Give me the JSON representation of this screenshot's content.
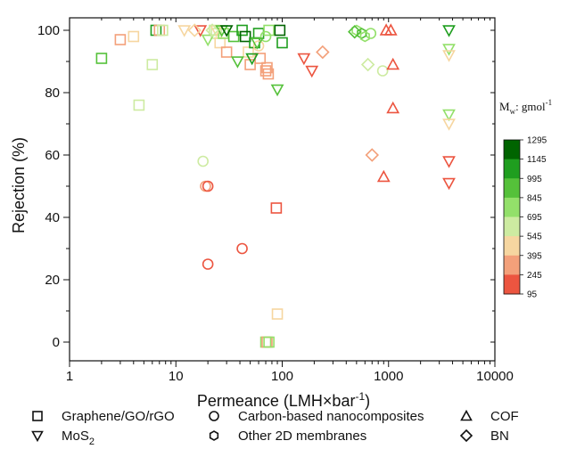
{
  "chart_data": {
    "type": "scatter",
    "xlabel": "Permeance (LMH×bar",
    "xlabel_sup": "-1",
    "xlabel_tail": ")",
    "ylabel": "Rejection (%)",
    "x_scale": "log",
    "xlim": [
      1,
      10000
    ],
    "ylim": [
      -6,
      104
    ],
    "x_ticks": [
      1,
      10,
      100,
      1000,
      10000
    ],
    "x_tick_labels": [
      "1",
      "10",
      "100",
      "1000",
      "10000"
    ],
    "y_ticks": [
      0,
      20,
      40,
      60,
      80,
      100
    ],
    "y_tick_labels": [
      "0",
      "20",
      "40",
      "60",
      "80",
      "100"
    ],
    "grid": false,
    "colorbar": {
      "title_prefix": "M",
      "title_sub": "w",
      "title_suffix": ": gmol",
      "title_sup": "-1",
      "levels": [
        "1295",
        "1145",
        "995",
        "845",
        "695",
        "545",
        "395",
        "245",
        "95"
      ],
      "colors": [
        "#006400",
        "#1f9e1f",
        "#55c13a",
        "#93e06a",
        "#cdeba1",
        "#f6d6a0",
        "#f3a07a",
        "#ec5540",
        "#e60000"
      ]
    },
    "legend": {
      "placement": "bottom",
      "items": [
        {
          "marker": "square",
          "label": "Graphene/GO/rGO"
        },
        {
          "marker": "circle",
          "label": "Carbon-based nanocomposites"
        },
        {
          "marker": "triangle-up",
          "label": "COF"
        },
        {
          "marker": "triangle-down",
          "label": "MoS",
          "sub": "2"
        },
        {
          "marker": "hexagon",
          "label": "Other 2D membranes"
        },
        {
          "marker": "diamond",
          "label": "BN"
        }
      ]
    },
    "series": [
      {
        "marker": "square",
        "points": [
          {
            "x": 2,
            "y": 91,
            "mw": 900
          },
          {
            "x": 3,
            "y": 97,
            "mw": 300
          },
          {
            "x": 4,
            "y": 98,
            "mw": 450
          },
          {
            "x": 4.5,
            "y": 76,
            "mw": 620
          },
          {
            "x": 6,
            "y": 89,
            "mw": 620
          },
          {
            "x": 6.5,
            "y": 100,
            "mw": 1000
          },
          {
            "x": 7,
            "y": 100,
            "mw": 250
          },
          {
            "x": 7.5,
            "y": 100,
            "mw": 650
          },
          {
            "x": 23,
            "y": 100,
            "mw": 650
          },
          {
            "x": 24,
            "y": 99,
            "mw": 600
          },
          {
            "x": 26,
            "y": 96,
            "mw": 450
          },
          {
            "x": 28,
            "y": 99,
            "mw": 700
          },
          {
            "x": 30,
            "y": 93,
            "mw": 300
          },
          {
            "x": 35,
            "y": 98,
            "mw": 850
          },
          {
            "x": 42,
            "y": 100,
            "mw": 1000
          },
          {
            "x": 45,
            "y": 98,
            "mw": 1150
          },
          {
            "x": 48,
            "y": 93,
            "mw": 450
          },
          {
            "x": 50,
            "y": 89,
            "mw": 300
          },
          {
            "x": 55,
            "y": 96,
            "mw": 1000
          },
          {
            "x": 60,
            "y": 99,
            "mw": 1100
          },
          {
            "x": 62,
            "y": 91,
            "mw": 300
          },
          {
            "x": 70,
            "y": 87,
            "mw": 300
          },
          {
            "x": 72,
            "y": 88,
            "mw": 250
          },
          {
            "x": 74,
            "y": 86,
            "mw": 300
          },
          {
            "x": 70,
            "y": 0,
            "mw": 700
          },
          {
            "x": 72,
            "y": 0,
            "mw": 300
          },
          {
            "x": 75,
            "y": 0,
            "mw": 800
          },
          {
            "x": 75,
            "y": 100,
            "mw": 800
          },
          {
            "x": 88,
            "y": 43,
            "mw": 200
          },
          {
            "x": 90,
            "y": 9,
            "mw": 400
          },
          {
            "x": 95,
            "y": 100,
            "mw": 1295
          },
          {
            "x": 100,
            "y": 96,
            "mw": 1000
          }
        ]
      },
      {
        "marker": "circle",
        "points": [
          {
            "x": 18,
            "y": 58,
            "mw": 620
          },
          {
            "x": 19,
            "y": 50,
            "mw": 300
          },
          {
            "x": 20,
            "y": 50,
            "mw": 200
          },
          {
            "x": 20,
            "y": 25,
            "mw": 200
          },
          {
            "x": 42,
            "y": 30,
            "mw": 200
          },
          {
            "x": 60,
            "y": 95,
            "mw": 400
          },
          {
            "x": 70,
            "y": 98,
            "mw": 700
          },
          {
            "x": 880,
            "y": 87,
            "mw": 650
          },
          {
            "x": 680,
            "y": 99,
            "mw": 750
          }
        ]
      },
      {
        "marker": "triangle-up",
        "points": [
          {
            "x": 900,
            "y": 53,
            "mw": 200
          },
          {
            "x": 950,
            "y": 100,
            "mw": 200
          },
          {
            "x": 1050,
            "y": 100,
            "mw": 200
          },
          {
            "x": 1100,
            "y": 89,
            "mw": 150
          },
          {
            "x": 1100,
            "y": 75,
            "mw": 150
          }
        ]
      },
      {
        "marker": "triangle-down",
        "points": [
          {
            "x": 12,
            "y": 100,
            "mw": 400
          },
          {
            "x": 17,
            "y": 100,
            "mw": 150
          },
          {
            "x": 20,
            "y": 97,
            "mw": 800
          },
          {
            "x": 24,
            "y": 100,
            "mw": 500
          },
          {
            "x": 27,
            "y": 100,
            "mw": 900
          },
          {
            "x": 30,
            "y": 100,
            "mw": 1200
          },
          {
            "x": 38,
            "y": 90,
            "mw": 950
          },
          {
            "x": 52,
            "y": 91,
            "mw": 1000
          },
          {
            "x": 58,
            "y": 96,
            "mw": 900
          },
          {
            "x": 90,
            "y": 81,
            "mw": 950
          },
          {
            "x": 160,
            "y": 91,
            "mw": 200
          },
          {
            "x": 190,
            "y": 87,
            "mw": 150
          },
          {
            "x": 3700,
            "y": 100,
            "mw": 1050
          },
          {
            "x": 3700,
            "y": 94,
            "mw": 800
          },
          {
            "x": 3700,
            "y": 92,
            "mw": 400
          },
          {
            "x": 3700,
            "y": 73,
            "mw": 700
          },
          {
            "x": 3700,
            "y": 70,
            "mw": 450
          },
          {
            "x": 3700,
            "y": 58,
            "mw": 200
          },
          {
            "x": 3700,
            "y": 51,
            "mw": 200
          }
        ]
      },
      {
        "marker": "hexagon",
        "points": [
          {
            "x": 500,
            "y": 100,
            "mw": 800
          },
          {
            "x": 560,
            "y": 99,
            "mw": 900
          },
          {
            "x": 600,
            "y": 98,
            "mw": 800
          }
        ]
      },
      {
        "marker": "diamond",
        "points": [
          {
            "x": 15,
            "y": 100,
            "mw": 450
          },
          {
            "x": 22,
            "y": 100,
            "mw": 600
          },
          {
            "x": 240,
            "y": 93,
            "mw": 300
          },
          {
            "x": 640,
            "y": 89,
            "mw": 650
          },
          {
            "x": 700,
            "y": 60,
            "mw": 250
          },
          {
            "x": 480,
            "y": 99.5,
            "mw": 850
          }
        ]
      }
    ]
  }
}
